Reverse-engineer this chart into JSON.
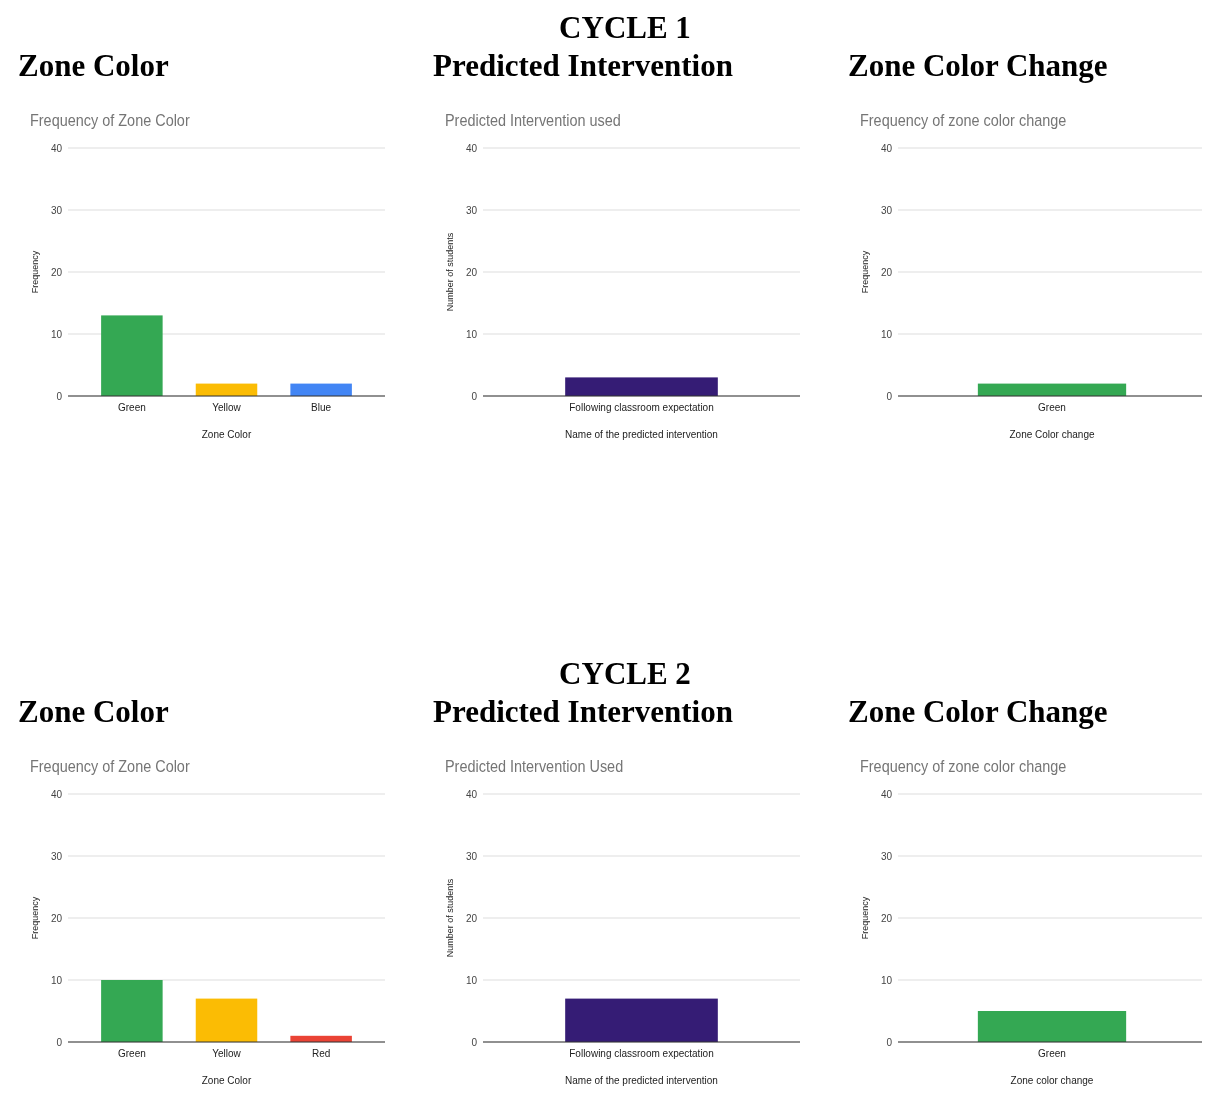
{
  "chart_data": [
    {
      "type": "bar",
      "title": "Zone Color",
      "subtitle": "Frequency of Zone Color",
      "xlabel": "Zone Color",
      "ylabel": "Frequency",
      "categories": [
        "Green",
        "Yellow",
        "Blue"
      ],
      "values": [
        13,
        2,
        2
      ],
      "colors": [
        "#34a853",
        "#fbbc04",
        "#4285f4"
      ],
      "ylim": [
        0,
        40
      ],
      "yticks": [
        0,
        10,
        20,
        30,
        40
      ],
      "grid": "y"
    },
    {
      "type": "bar",
      "title": "Predicted Intervention",
      "annotations": [
        "CYCLE 1"
      ],
      "subtitle": "Predicted Intervention used",
      "xlabel": "Name of the predicted intervention",
      "ylabel": "Number of students",
      "categories": [
        "Following classroom expectation"
      ],
      "values": [
        3
      ],
      "colors": [
        "#351c75"
      ],
      "ylim": [
        0,
        40
      ],
      "yticks": [
        0,
        10,
        20,
        30,
        40
      ],
      "grid": "y"
    },
    {
      "type": "bar",
      "title": "Zone Color Change",
      "subtitle": "Frequency of zone color change",
      "xlabel": "Zone Color change",
      "ylabel": "Frequency",
      "categories": [
        "Green"
      ],
      "values": [
        2
      ],
      "colors": [
        "#34a853"
      ],
      "ylim": [
        0,
        40
      ],
      "yticks": [
        0,
        10,
        20,
        30,
        40
      ],
      "grid": "y"
    },
    {
      "type": "bar",
      "title": "Zone Color",
      "subtitle": "Frequency of Zone Color",
      "xlabel": "Zone Color",
      "ylabel": "Frequency",
      "categories": [
        "Green",
        "Yellow",
        "Red"
      ],
      "values": [
        10,
        7,
        1
      ],
      "colors": [
        "#34a853",
        "#fbbc04",
        "#ea4335"
      ],
      "ylim": [
        0,
        40
      ],
      "yticks": [
        0,
        10,
        20,
        30,
        40
      ],
      "grid": "y"
    },
    {
      "type": "bar",
      "title": "Predicted Intervention",
      "annotations": [
        "CYCLE 2"
      ],
      "subtitle": "Predicted Intervention Used",
      "xlabel": "Name of the predicted intervention",
      "ylabel": "Number of students",
      "categories": [
        "Following classroom expectation"
      ],
      "values": [
        7
      ],
      "colors": [
        "#351c75"
      ],
      "ylim": [
        0,
        40
      ],
      "yticks": [
        0,
        10,
        20,
        30,
        40
      ],
      "grid": "y"
    },
    {
      "type": "bar",
      "title": "Zone Color Change",
      "subtitle": "Frequency of zone color change",
      "xlabel": "Zone color change",
      "ylabel": "Frequency",
      "categories": [
        "Green"
      ],
      "values": [
        5
      ],
      "colors": [
        "#34a853"
      ],
      "ylim": [
        0,
        40
      ],
      "yticks": [
        0,
        10,
        20,
        30,
        40
      ],
      "grid": "y"
    }
  ]
}
